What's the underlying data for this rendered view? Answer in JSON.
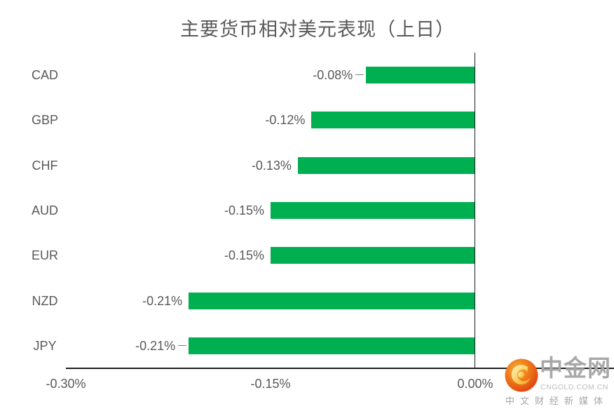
{
  "chart_data": {
    "type": "bar",
    "orientation": "horizontal",
    "title": "主要货币相对美元表现（上日）",
    "categories": [
      "CAD",
      "GBP",
      "CHF",
      "AUD",
      "EUR",
      "NZD",
      "JPY"
    ],
    "values": [
      -0.08,
      -0.12,
      -0.13,
      -0.15,
      -0.15,
      -0.21,
      -0.21
    ],
    "data_labels": [
      "-0.08%",
      "-0.12%",
      "-0.13%",
      "-0.15%",
      "-0.15%",
      "-0.21%",
      "-0.21%"
    ],
    "leader_line_indices": [
      0,
      6
    ],
    "x_ticks": [
      {
        "label": "-0.30%",
        "value": -0.3
      },
      {
        "label": "-0.15%",
        "value": -0.15
      },
      {
        "label": "0.00%",
        "value": 0.0
      }
    ],
    "xlim": [
      -0.3,
      0.0
    ],
    "xlabel": "",
    "ylabel": "",
    "grid": false,
    "legend": false,
    "bar_color": "#00B050",
    "text_color": "#595959",
    "axis_line_color": "#1f1f1f"
  },
  "logo": {
    "brand": "中金网",
    "domain": "CNGOLD.COM.CN",
    "tagline": "中文财经新媒体",
    "icon": "cngold-swirl-icon",
    "colors": {
      "circle_outer": "#DC3C10",
      "circle_inner": "#F8B133",
      "swirl": "#FBCE5A",
      "brand_text": "#a8a8a8",
      "sub_text": "#bdbdbd"
    }
  }
}
